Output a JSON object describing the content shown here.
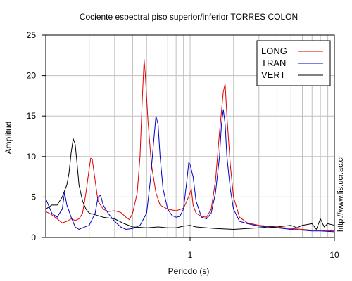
{
  "chart_data": {
    "type": "line",
    "title": "Cociente espectral piso superior/inferior  TORRES COLON",
    "xlabel": "Periodo (s)",
    "ylabel": "Amplitud",
    "x_scale": "log",
    "xlim": [
      0.1,
      10
    ],
    "ylim": [
      0,
      25
    ],
    "x_ticks": [
      {
        "value": 1,
        "label": "1"
      },
      {
        "value": 10,
        "label": "10"
      }
    ],
    "y_ticks": [
      {
        "value": 0,
        "label": "0"
      },
      {
        "value": 5,
        "label": "5"
      },
      {
        "value": 10,
        "label": "10"
      },
      {
        "value": 15,
        "label": "15"
      },
      {
        "value": 20,
        "label": "20"
      },
      {
        "value": 25,
        "label": "25"
      }
    ],
    "grid": true,
    "legend_position": "top-right",
    "source_url": "http://www.lis.ucr.ac.cr",
    "series": [
      {
        "name": "LONG",
        "color": "#e00000",
        "points": [
          [
            0.1,
            3.2
          ],
          [
            0.11,
            2.8
          ],
          [
            0.12,
            2.3
          ],
          [
            0.13,
            1.8
          ],
          [
            0.14,
            2.0
          ],
          [
            0.15,
            2.3
          ],
          [
            0.16,
            2.1
          ],
          [
            0.17,
            2.3
          ],
          [
            0.18,
            3.0
          ],
          [
            0.19,
            5.5
          ],
          [
            0.2,
            8.5
          ],
          [
            0.205,
            9.8
          ],
          [
            0.21,
            9.6
          ],
          [
            0.22,
            7.0
          ],
          [
            0.23,
            4.5
          ],
          [
            0.25,
            3.5
          ],
          [
            0.27,
            3.2
          ],
          [
            0.3,
            3.3
          ],
          [
            0.33,
            3.1
          ],
          [
            0.36,
            2.5
          ],
          [
            0.38,
            2.2
          ],
          [
            0.4,
            3.0
          ],
          [
            0.43,
            5.5
          ],
          [
            0.45,
            10.0
          ],
          [
            0.465,
            16.5
          ],
          [
            0.48,
            22.0
          ],
          [
            0.49,
            20.0
          ],
          [
            0.51,
            14.5
          ],
          [
            0.54,
            9.0
          ],
          [
            0.58,
            5.5
          ],
          [
            0.62,
            4.0
          ],
          [
            0.7,
            3.5
          ],
          [
            0.8,
            3.3
          ],
          [
            0.9,
            3.6
          ],
          [
            0.95,
            4.5
          ],
          [
            1.0,
            5.5
          ],
          [
            1.02,
            6.0
          ],
          [
            1.05,
            4.0
          ],
          [
            1.1,
            3.0
          ],
          [
            1.2,
            2.6
          ],
          [
            1.3,
            2.5
          ],
          [
            1.4,
            3.5
          ],
          [
            1.5,
            7.0
          ],
          [
            1.6,
            13.0
          ],
          [
            1.7,
            18.0
          ],
          [
            1.75,
            19.0
          ],
          [
            1.8,
            15.0
          ],
          [
            1.9,
            9.0
          ],
          [
            2.0,
            5.0
          ],
          [
            2.2,
            2.5
          ],
          [
            2.5,
            1.8
          ],
          [
            3.0,
            1.5
          ],
          [
            4.0,
            1.3
          ],
          [
            5.0,
            1.1
          ],
          [
            6.0,
            1.0
          ],
          [
            7.0,
            0.9
          ],
          [
            8.0,
            0.9
          ],
          [
            10.0,
            0.8
          ]
        ]
      },
      {
        "name": "TRAN",
        "color": "#0000c8",
        "points": [
          [
            0.1,
            4.8
          ],
          [
            0.11,
            3.0
          ],
          [
            0.12,
            2.5
          ],
          [
            0.13,
            3.5
          ],
          [
            0.135,
            5.5
          ],
          [
            0.14,
            4.0
          ],
          [
            0.15,
            2.5
          ],
          [
            0.16,
            1.3
          ],
          [
            0.17,
            1.0
          ],
          [
            0.18,
            1.2
          ],
          [
            0.2,
            1.5
          ],
          [
            0.22,
            3.0
          ],
          [
            0.23,
            5.0
          ],
          [
            0.24,
            5.2
          ],
          [
            0.25,
            4.0
          ],
          [
            0.27,
            3.0
          ],
          [
            0.3,
            2.0
          ],
          [
            0.33,
            1.3
          ],
          [
            0.36,
            1.0
          ],
          [
            0.4,
            1.1
          ],
          [
            0.45,
            1.5
          ],
          [
            0.5,
            3.0
          ],
          [
            0.53,
            7.0
          ],
          [
            0.56,
            12.0
          ],
          [
            0.58,
            15.0
          ],
          [
            0.6,
            14.0
          ],
          [
            0.62,
            10.0
          ],
          [
            0.65,
            6.0
          ],
          [
            0.7,
            3.5
          ],
          [
            0.75,
            2.7
          ],
          [
            0.8,
            2.5
          ],
          [
            0.85,
            2.6
          ],
          [
            0.9,
            3.5
          ],
          [
            0.95,
            7.0
          ],
          [
            0.98,
            9.3
          ],
          [
            1.0,
            9.0
          ],
          [
            1.05,
            7.5
          ],
          [
            1.1,
            4.5
          ],
          [
            1.2,
            2.5
          ],
          [
            1.3,
            2.3
          ],
          [
            1.4,
            3.0
          ],
          [
            1.5,
            5.5
          ],
          [
            1.6,
            10.0
          ],
          [
            1.65,
            14.0
          ],
          [
            1.7,
            15.8
          ],
          [
            1.75,
            14.0
          ],
          [
            1.8,
            10.0
          ],
          [
            1.9,
            6.0
          ],
          [
            2.0,
            3.5
          ],
          [
            2.2,
            2.0
          ],
          [
            2.5,
            1.7
          ],
          [
            3.0,
            1.4
          ],
          [
            4.0,
            1.2
          ],
          [
            5.0,
            1.0
          ],
          [
            6.0,
            0.9
          ],
          [
            7.0,
            0.8
          ],
          [
            8.0,
            0.8
          ],
          [
            10.0,
            0.7
          ]
        ]
      },
      {
        "name": "VERT",
        "color": "#000000",
        "points": [
          [
            0.1,
            3.5
          ],
          [
            0.11,
            4.0
          ],
          [
            0.12,
            4.0
          ],
          [
            0.13,
            5.0
          ],
          [
            0.14,
            6.5
          ],
          [
            0.145,
            8.0
          ],
          [
            0.15,
            10.5
          ],
          [
            0.155,
            12.2
          ],
          [
            0.16,
            11.5
          ],
          [
            0.165,
            9.0
          ],
          [
            0.17,
            6.5
          ],
          [
            0.18,
            4.5
          ],
          [
            0.19,
            3.5
          ],
          [
            0.2,
            3.0
          ],
          [
            0.22,
            2.8
          ],
          [
            0.25,
            2.5
          ],
          [
            0.3,
            2.3
          ],
          [
            0.35,
            1.7
          ],
          [
            0.4,
            1.3
          ],
          [
            0.5,
            1.2
          ],
          [
            0.6,
            1.3
          ],
          [
            0.7,
            1.2
          ],
          [
            0.8,
            1.2
          ],
          [
            0.9,
            1.4
          ],
          [
            1.0,
            1.5
          ],
          [
            1.1,
            1.3
          ],
          [
            1.3,
            1.2
          ],
          [
            1.5,
            1.1
          ],
          [
            2.0,
            1.0
          ],
          [
            2.5,
            1.1
          ],
          [
            3.0,
            1.2
          ],
          [
            3.5,
            1.3
          ],
          [
            4.0,
            1.3
          ],
          [
            5.0,
            1.5
          ],
          [
            5.5,
            1.2
          ],
          [
            6.0,
            1.5
          ],
          [
            7.0,
            1.7
          ],
          [
            7.5,
            1.0
          ],
          [
            8.0,
            2.3
          ],
          [
            8.5,
            1.3
          ],
          [
            9.0,
            1.7
          ],
          [
            10.0,
            1.5
          ]
        ]
      }
    ]
  }
}
